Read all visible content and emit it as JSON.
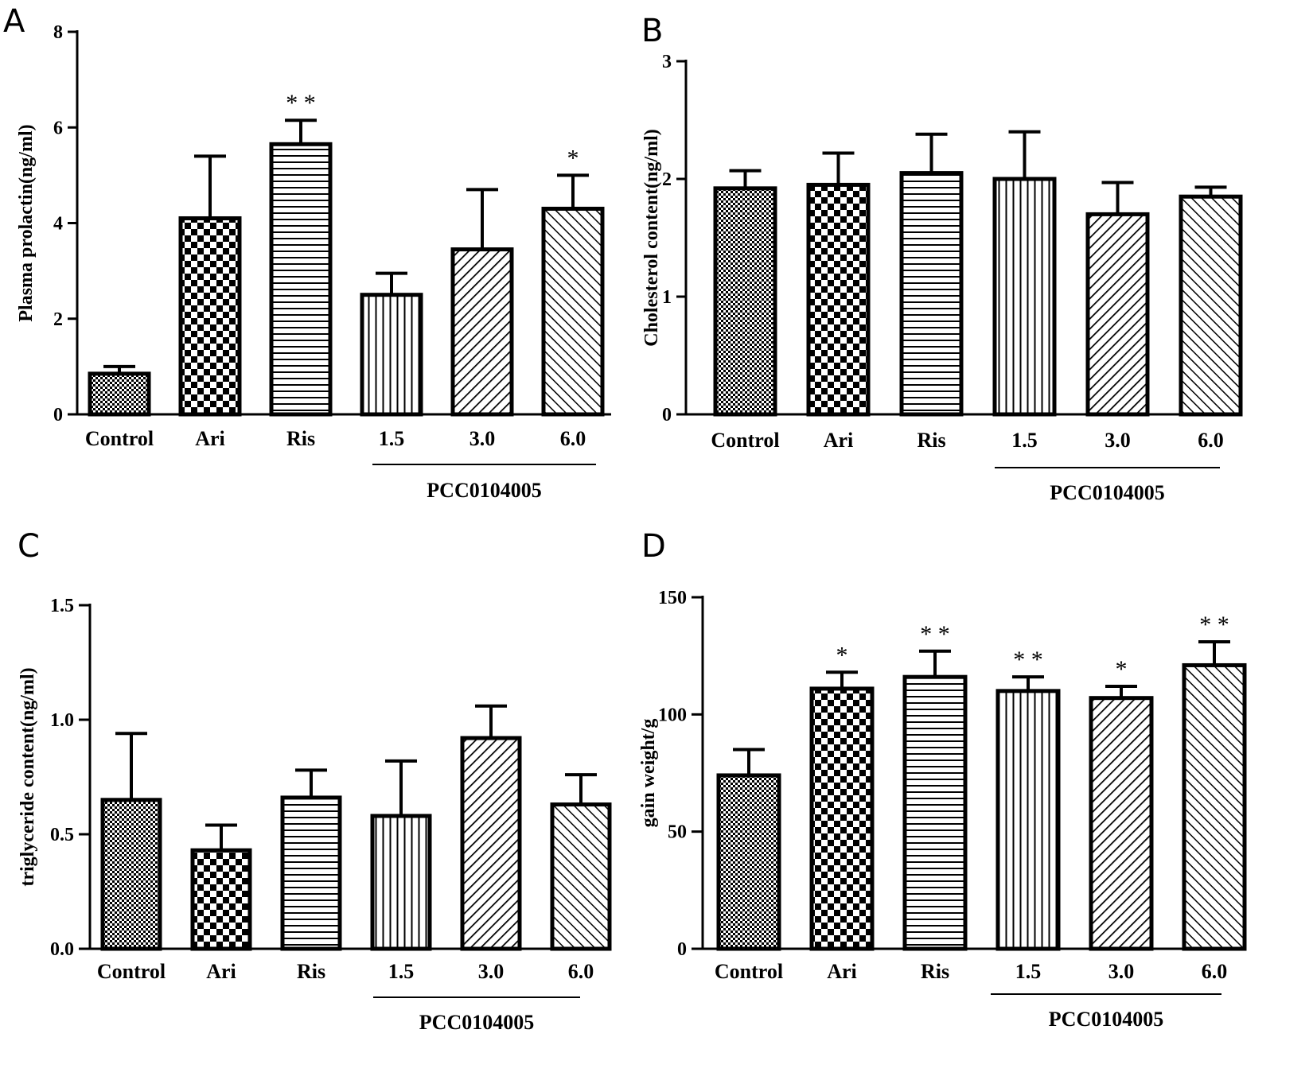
{
  "chart_data": [
    {
      "panel": "A",
      "type": "bar",
      "categories": [
        "Control",
        "Ari",
        "Ris",
        "1.5",
        "3.0",
        "6.0"
      ],
      "values": [
        0.85,
        4.1,
        5.65,
        2.5,
        3.45,
        4.3
      ],
      "errors": [
        0.15,
        1.3,
        0.5,
        0.45,
        1.25,
        0.7
      ],
      "significance": [
        "",
        "",
        "**",
        "",
        "",
        "*"
      ],
      "ylabel": "Plasma prolactin(ng/ml)",
      "ylim": [
        0,
        8
      ],
      "yticks": [
        0,
        2,
        4,
        6,
        8
      ],
      "ytick_labels": [
        "0",
        "2",
        "4",
        "6",
        "8"
      ],
      "group_label": "PCC0104005"
    },
    {
      "panel": "B",
      "type": "bar",
      "categories": [
        "Control",
        "Ari",
        "Ris",
        "1.5",
        "3.0",
        "6.0"
      ],
      "values": [
        1.92,
        1.95,
        2.05,
        2.0,
        1.7,
        1.85
      ],
      "errors": [
        0.15,
        0.27,
        0.33,
        0.4,
        0.27,
        0.08
      ],
      "significance": [
        "",
        "",
        "",
        "",
        "",
        ""
      ],
      "ylabel": "Cholesterol content(ng/ml)",
      "ylim": [
        0,
        3
      ],
      "yticks": [
        0,
        1,
        2,
        3
      ],
      "ytick_labels": [
        "0",
        "1",
        "2",
        "3"
      ],
      "group_label": "PCC0104005"
    },
    {
      "panel": "C",
      "type": "bar",
      "categories": [
        "Control",
        "Ari",
        "Ris",
        "1.5",
        "3.0",
        "6.0"
      ],
      "values": [
        0.65,
        0.43,
        0.66,
        0.58,
        0.92,
        0.63
      ],
      "errors": [
        0.29,
        0.11,
        0.12,
        0.24,
        0.14,
        0.13
      ],
      "significance": [
        "",
        "",
        "",
        "",
        "",
        ""
      ],
      "ylabel": "triglyceride content(ng/ml)",
      "ylim": [
        0,
        1.5
      ],
      "yticks": [
        0,
        0.5,
        1.0,
        1.5
      ],
      "ytick_labels": [
        "0.0",
        "0.5",
        "1.0",
        "1.5"
      ],
      "group_label": "PCC0104005"
    },
    {
      "panel": "D",
      "type": "bar",
      "categories": [
        "Control",
        "Ari",
        "Ris",
        "1.5",
        "3.0",
        "6.0"
      ],
      "values": [
        74,
        111,
        116,
        110,
        107,
        121
      ],
      "errors": [
        11,
        7,
        11,
        6,
        5,
        10
      ],
      "significance": [
        "",
        "*",
        "**",
        "**",
        "*",
        "**"
      ],
      "ylabel": "gain weight/g",
      "ylim": [
        0,
        150
      ],
      "yticks": [
        0,
        50,
        100,
        150
      ],
      "ytick_labels": [
        "0",
        "50",
        "100",
        "150"
      ],
      "group_label": "PCC0104005"
    }
  ]
}
